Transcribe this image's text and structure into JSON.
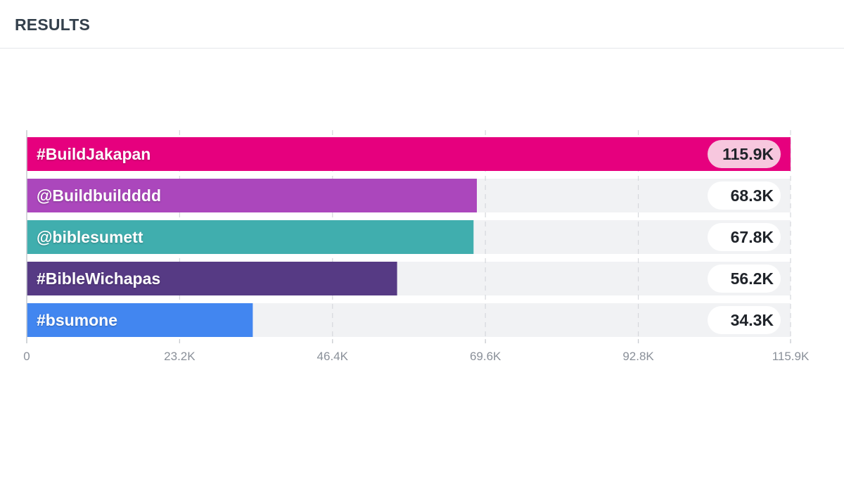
{
  "header": {
    "title": "RESULTS"
  },
  "chart_data": {
    "type": "bar",
    "orientation": "horizontal",
    "categories": [
      "#BuildJakapan",
      "@Buildbuildddd",
      "@biblesumett",
      "#BibleWichapas",
      "#bsumone"
    ],
    "values": [
      115.9,
      68.3,
      67.8,
      56.2,
      34.3
    ],
    "value_labels": [
      "115.9K",
      "68.3K",
      "67.8K",
      "56.2K",
      "34.3K"
    ],
    "unit": "K",
    "colors": [
      "#e6007e",
      "#ab47bc",
      "#40aeae",
      "#563a84",
      "#4286f0"
    ],
    "track_color": "#f1f2f4",
    "highlight_pill_color": "#f7c7de",
    "pill_color": "#ffffff",
    "xlim": [
      0,
      115.9
    ],
    "x_ticks": [
      0,
      23.2,
      46.4,
      69.6,
      92.8,
      115.9
    ],
    "x_tick_labels": [
      "0",
      "23.2K",
      "46.4K",
      "69.6K",
      "92.8K",
      "115.9K"
    ],
    "grid": true,
    "title": "",
    "xlabel": "",
    "ylabel": ""
  }
}
